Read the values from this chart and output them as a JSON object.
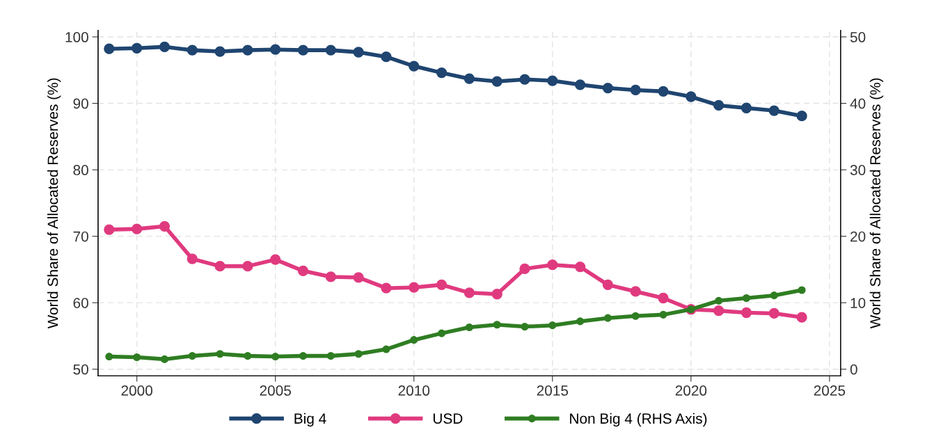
{
  "chart_data": {
    "type": "line",
    "ylabel": "World Share of Allocated Reserves (%)",
    "y2label": "World Share of Allocated Reserves (%)",
    "x": [
      1999,
      2000,
      2001,
      2002,
      2003,
      2004,
      2005,
      2006,
      2007,
      2008,
      2009,
      2010,
      2011,
      2012,
      2013,
      2014,
      2015,
      2016,
      2017,
      2018,
      2019,
      2020,
      2021,
      2022,
      2023,
      2024
    ],
    "series": [
      {
        "name": "Big 4",
        "color": "#1f4570",
        "values": [
          98.2,
          98.3,
          98.5,
          98.0,
          97.8,
          98.0,
          98.1,
          98.0,
          98.0,
          97.7,
          97.0,
          95.6,
          94.6,
          93.7,
          93.3,
          93.6,
          93.4,
          92.8,
          92.3,
          92.0,
          91.8,
          91.0,
          89.7,
          89.3,
          88.9,
          88.1
        ]
      },
      {
        "name": "USD",
        "color": "#e03a7f",
        "values": [
          71.0,
          71.1,
          71.5,
          66.6,
          65.5,
          65.5,
          66.5,
          64.8,
          63.9,
          63.8,
          62.2,
          62.3,
          62.7,
          61.5,
          61.3,
          65.1,
          65.7,
          65.4,
          62.7,
          61.7,
          60.7,
          59.0,
          58.8,
          58.5,
          58.4,
          57.8
        ]
      },
      {
        "name": "Non Big 4 (RHS Axis)",
        "color": "#2f7d22",
        "axis": "y2",
        "values": [
          1.9,
          1.8,
          1.5,
          2.0,
          2.3,
          2.0,
          1.9,
          2.0,
          2.0,
          2.3,
          3.0,
          4.4,
          5.4,
          6.3,
          6.7,
          6.4,
          6.6,
          7.2,
          7.7,
          8.0,
          8.2,
          9.0,
          10.3,
          10.7,
          11.1,
          11.9
        ]
      }
    ],
    "xlim": [
      1998.6,
      2025.4
    ],
    "xticks": [
      2000,
      2005,
      2010,
      2015,
      2020,
      2025
    ],
    "ylim": [
      49,
      101
    ],
    "yticks": [
      50,
      60,
      70,
      80,
      90,
      100
    ],
    "y2lim": [
      -1,
      51
    ],
    "y2ticks": [
      0,
      10,
      20,
      30,
      40,
      50
    ],
    "grid": true,
    "legend": "bottom",
    "marker": "circle",
    "line_style": "solid"
  }
}
